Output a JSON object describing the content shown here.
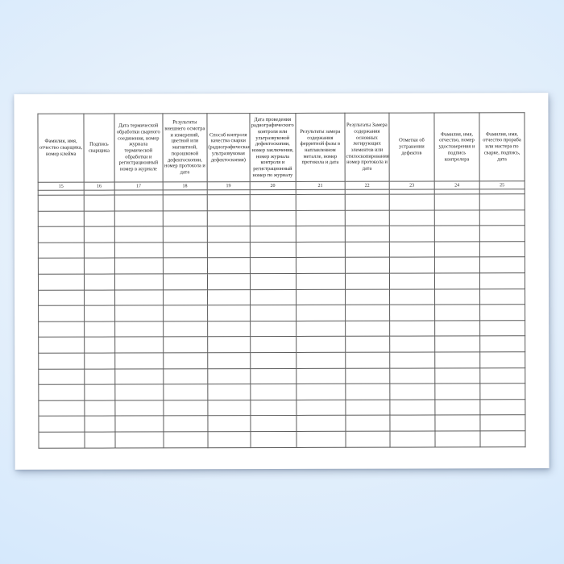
{
  "page": {
    "background_color": "#d6e9fc",
    "sheet_color": "#ffffff",
    "grid_line_color": "#5c5c5c",
    "text_color": "#222222"
  },
  "table": {
    "columns": [
      {
        "number": "15",
        "header": "Фамилия, имя, отчество сварщика, номер клейма"
      },
      {
        "number": "16",
        "header": "Подпись сварщика"
      },
      {
        "number": "17",
        "header": "Дата термической обработки сварного соединения, номер журнала термической обработки и регистрационный номер в журнале"
      },
      {
        "number": "18",
        "header": "Результаты внешнего осмотра и измерений, цветной или магнитной, порошковой дефектоскопии, номер протокола и дата"
      },
      {
        "number": "19",
        "header": "Способ контроля качества сварки (радиографическая, ультразвуковая дефектоскопия)"
      },
      {
        "number": "20",
        "header": "Дата проведения радиографического контроля или ультразвуковой дефектоскопии, номер заключения, номер журнала контроля и регистрационный номер по журналу"
      },
      {
        "number": "21",
        "header": "Результаты замера содержания ферритной фазы в наплавленном металле, номер протокола и дата"
      },
      {
        "number": "22",
        "header": "Результаты Замера содержания основных легирующих элементов или стилоскопирования, номер протокола и дата"
      },
      {
        "number": "23",
        "header": "Отметки об устранении дефектов"
      },
      {
        "number": "24",
        "header": "Фамилия, имя, отчество, номер удостоверения и подпись контролера"
      },
      {
        "number": "25",
        "header": "Фамилия, имя, отчество прораба или мастера по сварке, подпись, дата"
      }
    ],
    "empty_row_count": 16
  }
}
